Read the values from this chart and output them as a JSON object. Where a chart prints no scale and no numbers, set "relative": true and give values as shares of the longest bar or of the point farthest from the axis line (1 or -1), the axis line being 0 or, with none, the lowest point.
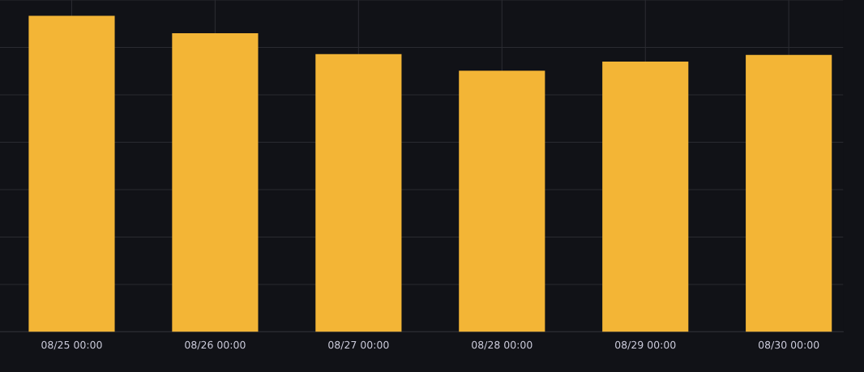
{
  "chart_data": {
    "type": "bar",
    "relative": true,
    "grid": true,
    "categories": [
      "08/25 00:00",
      "08/26 00:00",
      "08/27 00:00",
      "08/28 00:00",
      "08/29 00:00",
      "08/30 00:00"
    ],
    "series": [
      {
        "color": "#f3b536",
        "values": [
          1,
          0.945,
          0.879,
          0.826,
          0.855,
          0.876
        ]
      }
    ]
  }
}
